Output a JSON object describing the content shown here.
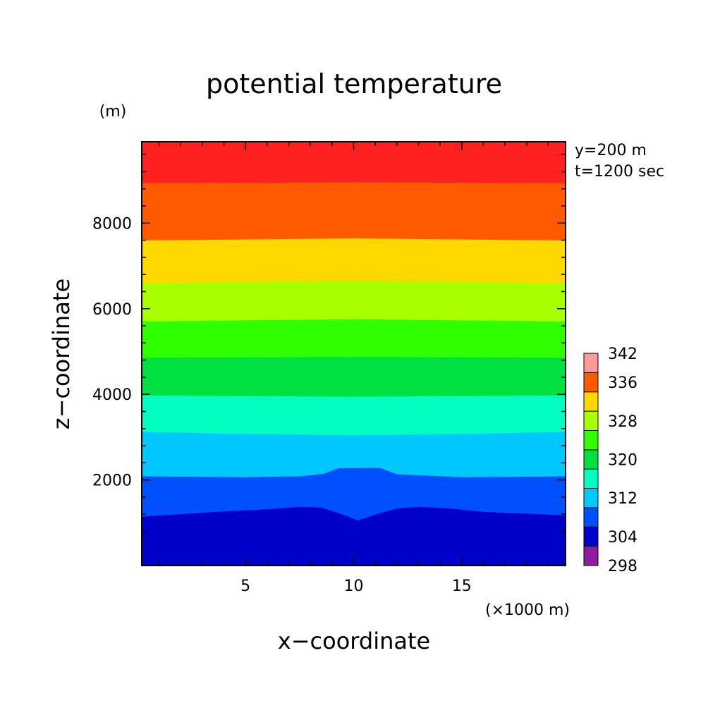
{
  "chart_data": {
    "type": "heatmap",
    "title": "potential temperature",
    "xlabel": "x−coordinate",
    "ylabel": "z−coordinate",
    "x_unit": "(×1000 m)",
    "y_unit": "(m)",
    "info": [
      "y=200 m",
      "t=1200 sec"
    ],
    "x_range": [
      0.2,
      19.8
    ],
    "y_range": [
      0,
      9900
    ],
    "x_ticks": [
      5,
      10,
      15
    ],
    "x_tick_labels": [
      "5",
      "10",
      "15"
    ],
    "y_ticks": [
      2000,
      4000,
      6000,
      8000
    ],
    "y_tick_labels": [
      "2000",
      "4000",
      "6000",
      "8000"
    ],
    "x_minor_step": 1,
    "y_minor_step": 400,
    "levels": [
      298,
      302,
      306,
      310,
      314,
      318,
      322,
      326,
      330,
      334,
      338,
      342
    ],
    "colorbar_labels": [
      "298",
      "304",
      "312",
      "320",
      "328",
      "336",
      "342"
    ],
    "colors": [
      "#8e1c9e",
      "#0000c8",
      "#0050ff",
      "#00c8ff",
      "#00ffc0",
      "#00e040",
      "#30ff00",
      "#a8ff00",
      "#ffd800",
      "#ff5a00",
      "#ff2020",
      "#ff9a9a"
    ],
    "band_colors": [
      "#0000c8",
      "#0050ff",
      "#00c8ff",
      "#00ffc0",
      "#00e040",
      "#30ff00",
      "#a8ff00",
      "#ffd800",
      "#ff5a00",
      "#ff2020"
    ],
    "contours": [
      {
        "level": 302,
        "x": [
          0.2,
          4,
          6,
          7.5,
          8.5,
          9.5,
          10.2,
          11,
          12,
          13,
          14.5,
          16,
          19.8
        ],
        "z": [
          1150,
          1270,
          1320,
          1380,
          1360,
          1200,
          1060,
          1200,
          1340,
          1380,
          1340,
          1260,
          1180
        ]
      },
      {
        "level": 306,
        "x": [
          0.2,
          5,
          7.5,
          8.6,
          9.3,
          11.2,
          12,
          15,
          19.8
        ],
        "z": [
          2090,
          2070,
          2090,
          2150,
          2280,
          2290,
          2140,
          2070,
          2090
        ]
      },
      {
        "level": 310,
        "x": [
          0.2,
          5,
          10,
          15,
          19.8
        ],
        "z": [
          3130,
          3080,
          3050,
          3080,
          3130
        ]
      },
      {
        "level": 314,
        "x": [
          0.2,
          10,
          19.8
        ],
        "z": [
          3980,
          3950,
          3980
        ]
      },
      {
        "level": 318,
        "x": [
          0.2,
          10,
          19.8
        ],
        "z": [
          4860,
          4880,
          4860
        ]
      },
      {
        "level": 322,
        "x": [
          0.2,
          10,
          19.8
        ],
        "z": [
          5710,
          5760,
          5710
        ]
      },
      {
        "level": 326,
        "x": [
          0.2,
          10,
          19.8
        ],
        "z": [
          6600,
          6660,
          6600
        ]
      },
      {
        "level": 330,
        "x": [
          0.2,
          10,
          19.8
        ],
        "z": [
          7600,
          7650,
          7600
        ]
      },
      {
        "level": 334,
        "x": [
          0.2,
          10,
          19.8
        ],
        "z": [
          8940,
          8960,
          8940
        ]
      }
    ]
  }
}
